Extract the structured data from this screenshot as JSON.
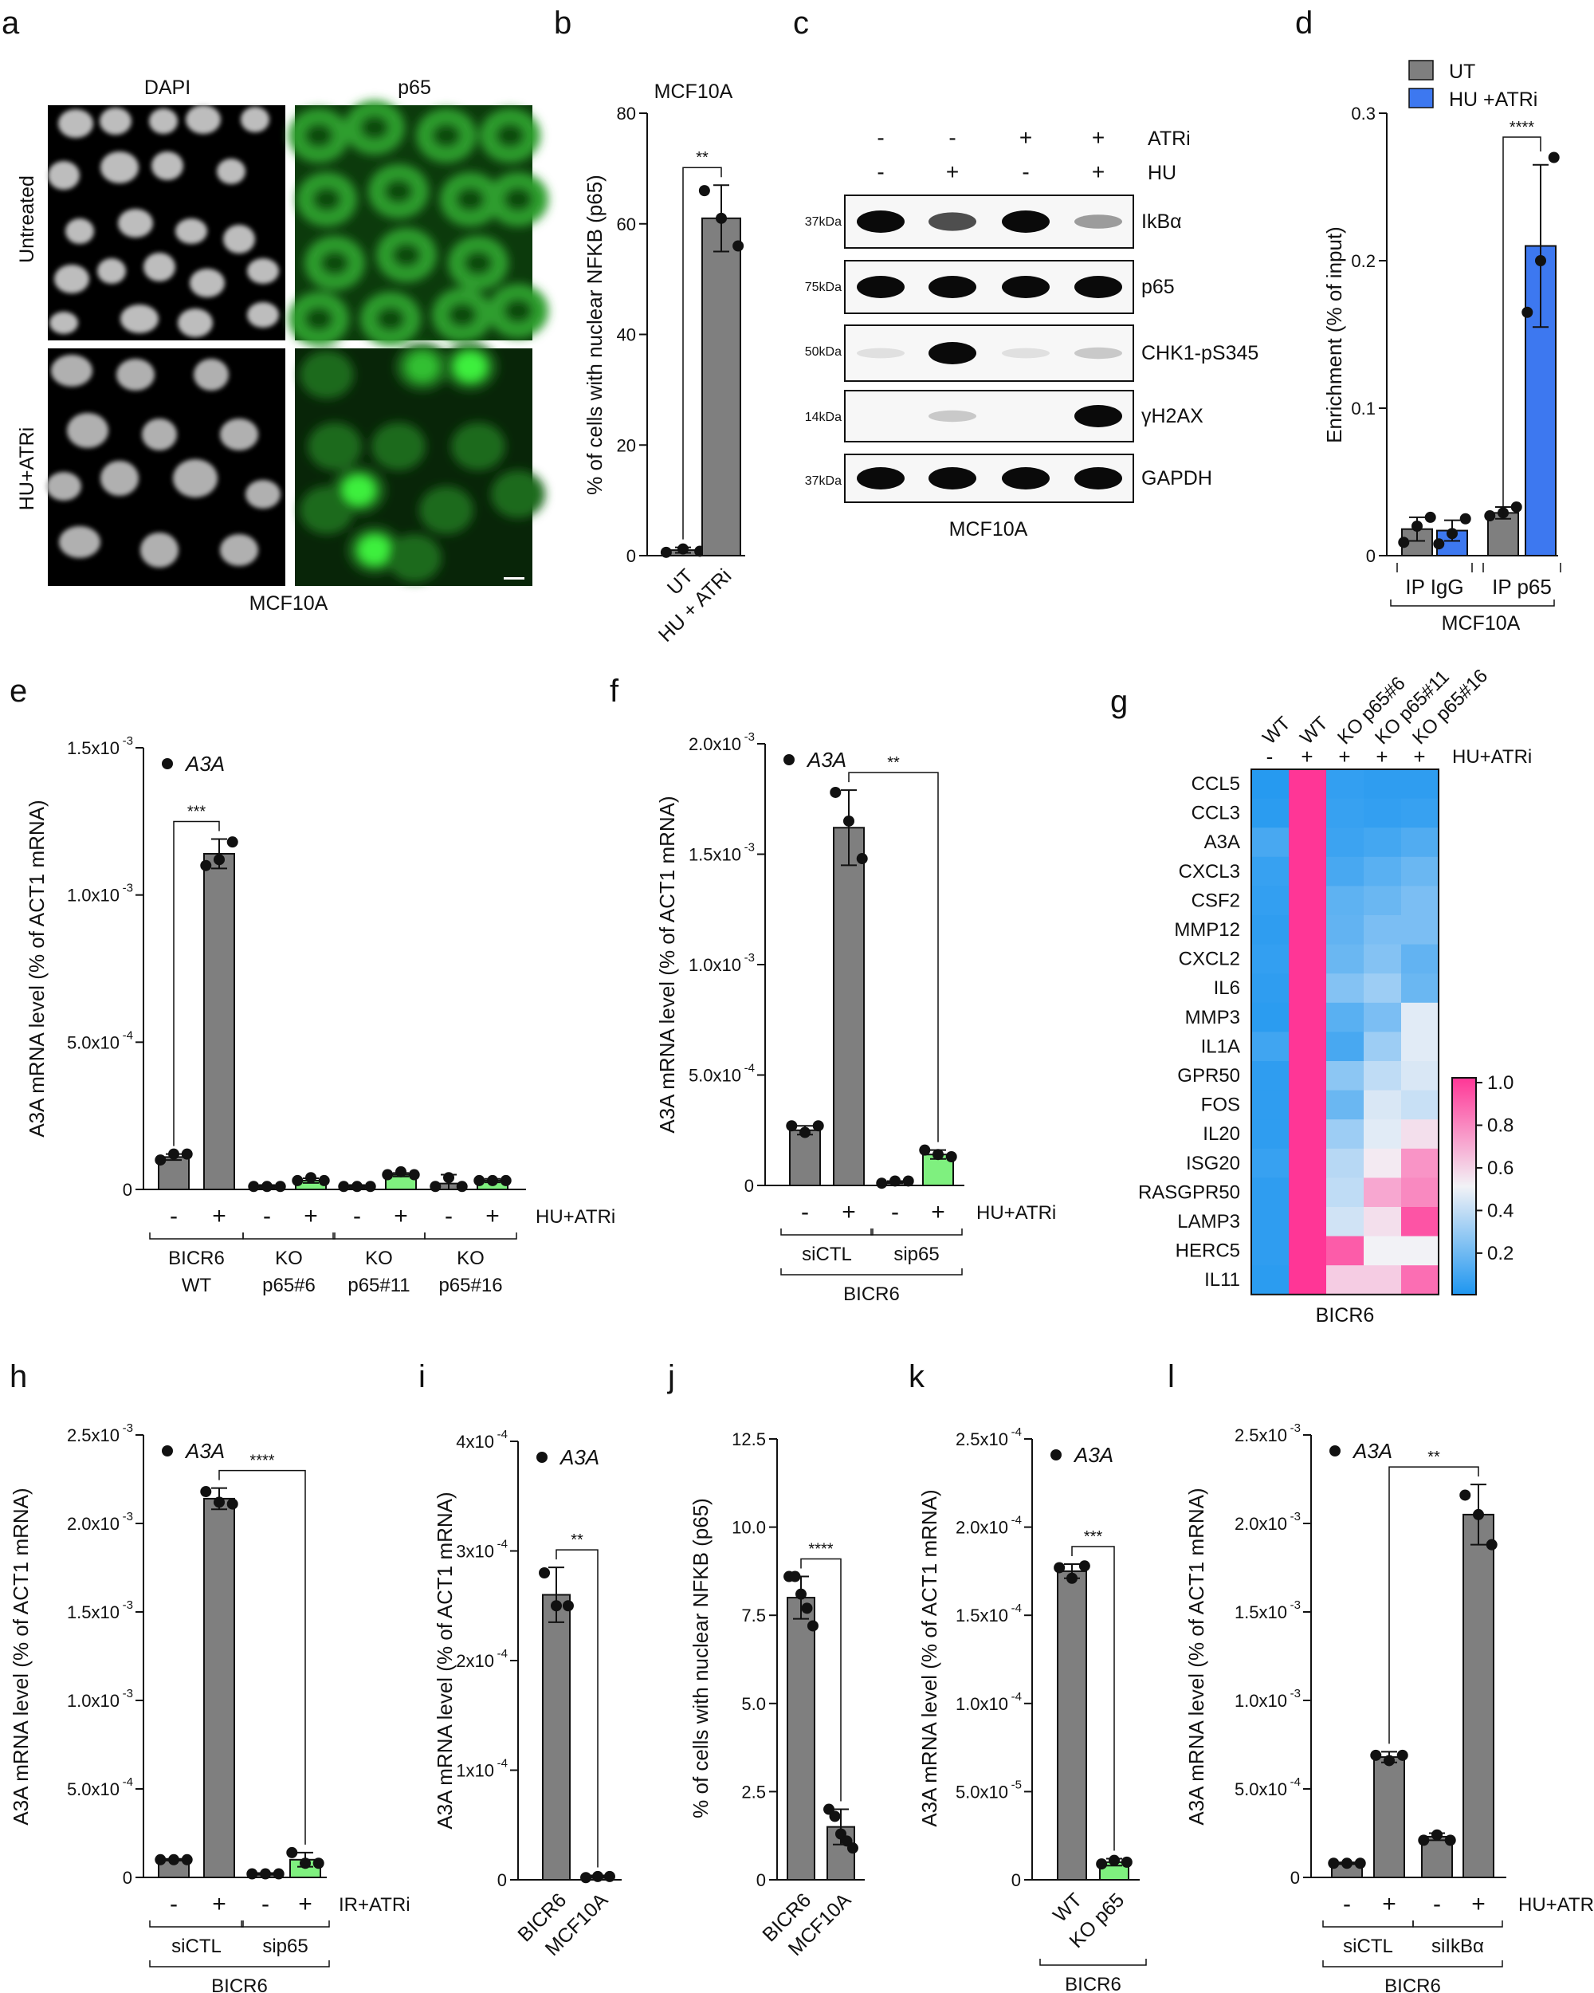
{
  "colors": {
    "gray": "#7f7f7f",
    "blue": "#3d78f0",
    "green": "#7ff07f",
    "axis": "#111111",
    "heat_low": "#1e96f0",
    "heat_mid": "#f2f2f6",
    "heat_high": "#ff3696"
  },
  "panel_a": {
    "letter": "a",
    "col_labels": [
      "DAPI",
      "p65"
    ],
    "row_labels": [
      "Untreated",
      "HU+ATRi"
    ],
    "caption": "MCF10A"
  },
  "panel_c": {
    "letter": "c",
    "treat_rows": [
      {
        "label": "ATRi",
        "signs": [
          "-",
          "-",
          "+",
          "+"
        ]
      },
      {
        "label": "HU",
        "signs": [
          "-",
          "+",
          "-",
          "+"
        ]
      }
    ],
    "blots": [
      {
        "name": "IkBα",
        "marker": "37kDa",
        "intensity": [
          1.0,
          0.7,
          1.0,
          0.35
        ]
      },
      {
        "name": "p65",
        "marker": "75kDa",
        "intensity": [
          1.0,
          1.0,
          1.0,
          1.0
        ]
      },
      {
        "name": "CHK1-pS345",
        "marker": "50kDa",
        "intensity": [
          0.05,
          1.0,
          0.05,
          0.15
        ]
      },
      {
        "name": "γH2AX",
        "marker": "14kDa",
        "intensity": [
          0.0,
          0.15,
          0.0,
          1.0
        ]
      },
      {
        "name": "GAPDH",
        "marker": "37kDa",
        "intensity": [
          1.0,
          1.0,
          1.0,
          1.0
        ]
      }
    ],
    "caption": "MCF10A"
  },
  "chart_data": [
    {
      "id": "b",
      "type": "bar",
      "letter": "b",
      "title": "MCF10A",
      "ylabel": "% of cells with nuclear NFKB (p65)",
      "ylim": [
        0,
        80
      ],
      "yticks": [
        "0",
        "20",
        "40",
        "60",
        "80"
      ],
      "ytick_values": [
        0,
        20,
        40,
        60,
        80
      ],
      "categories": [
        "UT",
        "HU + ATRi"
      ],
      "values": [
        1,
        61
      ],
      "errors": [
        0.5,
        6
      ],
      "colors": [
        "gray",
        "gray"
      ],
      "points": [
        [
          0.6,
          1.2,
          0.8
        ],
        [
          66,
          61,
          56
        ]
      ],
      "sig": [
        {
          "from": 0,
          "to": 1,
          "text": "**"
        }
      ],
      "xlabel_rotated": true
    },
    {
      "id": "d",
      "type": "bar",
      "letter": "d",
      "ylabel": "Enrichment (% of input)",
      "ylim": [
        0,
        0.3
      ],
      "yticks": [
        "0",
        "0.1",
        "0.2",
        "0.3"
      ],
      "ytick_values": [
        0,
        0.1,
        0.2,
        0.3
      ],
      "legend": [
        {
          "name": "UT",
          "color": "gray"
        },
        {
          "name": "HU +ATRi",
          "color": "blue"
        }
      ],
      "categories": [
        "IP IgG",
        "IP p65"
      ],
      "series": [
        {
          "name": "UT",
          "values": [
            0.018,
            0.029
          ],
          "errors": [
            0.008,
            0.004
          ],
          "points": [
            [
              0.009,
              0.02,
              0.026
            ],
            [
              0.027,
              0.029,
              0.033
            ]
          ]
        },
        {
          "name": "HU +ATRi",
          "values": [
            0.017,
            0.21
          ],
          "errors": [
            0.007,
            0.055
          ],
          "points": [
            [
              0.008,
              0.015,
              0.025
            ],
            [
              0.165,
              0.2,
              0.27
            ]
          ]
        }
      ],
      "sig": [
        {
          "text": "****"
        }
      ],
      "group_label": "MCF10A"
    },
    {
      "id": "e",
      "type": "bar",
      "letter": "e",
      "ylabel": "A3A mRNA level (% of ACT1 mRNA)",
      "legend_label": "A3A",
      "ylim": [
        0,
        0.0015
      ],
      "yticks": [
        "0",
        "5.0x10",
        "1.0x10",
        "1.5x10"
      ],
      "ytick_exps": [
        "",
        "-4",
        "-3",
        "-3"
      ],
      "ytick_values": [
        0,
        0.0005,
        0.001,
        0.0015
      ],
      "categories": [
        "-",
        "+",
        "-",
        "+",
        "-",
        "+",
        "-",
        "+"
      ],
      "values": [
        0.00011,
        0.00114,
        1e-05,
        3e-05,
        1e-05,
        5e-05,
        2e-05,
        3e-05
      ],
      "errors": [
        1e-05,
        5e-05,
        5e-06,
        8e-06,
        5e-06,
        6e-06,
        3e-05,
        6e-06
      ],
      "colors": [
        "gray",
        "gray",
        "gray",
        "green",
        "gray",
        "green",
        "gray",
        "green"
      ],
      "points": [
        [
          0.0001,
          0.00012,
          0.00012
        ],
        [
          0.0011,
          0.00112,
          0.00118
        ],
        [
          1e-05,
          1e-05,
          1e-05
        ],
        [
          3e-05,
          4e-05,
          3e-05
        ],
        [
          1e-05,
          1e-05,
          1e-05
        ],
        [
          5e-05,
          6e-05,
          5e-05
        ],
        [
          1e-05,
          4e-05,
          1e-05
        ],
        [
          3e-05,
          3e-05,
          3e-05
        ]
      ],
      "sig": [
        {
          "from": 0,
          "to": 1,
          "text": "***"
        }
      ],
      "treatment": "HU+ATRi",
      "groups": [
        {
          "label": [
            "BICR6",
            "WT"
          ],
          "bars": [
            0,
            1
          ]
        },
        {
          "label": [
            "KO",
            "p65#6"
          ],
          "bars": [
            2,
            3
          ]
        },
        {
          "label": [
            "KO",
            "p65#11"
          ],
          "bars": [
            4,
            5
          ]
        },
        {
          "label": [
            "KO",
            "p65#16"
          ],
          "bars": [
            6,
            7
          ]
        }
      ]
    },
    {
      "id": "f",
      "type": "bar",
      "letter": "f",
      "ylabel": "A3A mRNA level (% of ACT1 mRNA)",
      "legend_label": "A3A",
      "ylim": [
        0,
        0.002
      ],
      "yticks": [
        "0",
        "5.0x10",
        "1.0x10",
        "1.5x10",
        "2.0x10"
      ],
      "ytick_exps": [
        "",
        "-4",
        "-3",
        "-3",
        "-3"
      ],
      "ytick_values": [
        0,
        0.0005,
        0.001,
        0.0015,
        0.002
      ],
      "categories": [
        "-",
        "+",
        "-",
        "+"
      ],
      "values": [
        0.00025,
        0.00162,
        1.5e-05,
        0.00014
      ],
      "errors": [
        2e-05,
        0.00017,
        5e-06,
        2e-05
      ],
      "colors": [
        "gray",
        "gray",
        "gray",
        "green"
      ],
      "points": [
        [
          0.00027,
          0.00024,
          0.00027
        ],
        [
          0.00178,
          0.00165,
          0.00148
        ],
        [
          1e-05,
          2e-05,
          2e-05
        ],
        [
          0.00016,
          0.00014,
          0.00013
        ]
      ],
      "sig": [
        {
          "from": 1,
          "to": 3,
          "text": "**"
        }
      ],
      "treatment": "HU+ATRi",
      "groups": [
        {
          "label": [
            "siCTL"
          ],
          "bars": [
            0,
            1
          ]
        },
        {
          "label": [
            "sip65"
          ],
          "bars": [
            2,
            3
          ]
        }
      ],
      "group_label": "BICR6"
    },
    {
      "id": "g",
      "type": "heatmap",
      "letter": "g",
      "columns": [
        "WT",
        "WT",
        "KO p65#6",
        "KO p65#11",
        "KO p65#16"
      ],
      "col_signs": [
        "-",
        "+",
        "+",
        "+",
        "+"
      ],
      "treatment": "HU+ATRi",
      "rows": [
        "CCL5",
        "CCL3",
        "A3A",
        "CXCL3",
        "CSF2",
        "MMP12",
        "CXCL2",
        "IL6",
        "MMP3",
        "IL1A",
        "GPR50",
        "FOS",
        "IL20",
        "ISG20",
        "RASGPR50",
        "LAMP3",
        "HERC5",
        "IL11"
      ],
      "values": [
        [
          0.02,
          1.0,
          0.05,
          0.04,
          0.04
        ],
        [
          0.03,
          1.0,
          0.06,
          0.05,
          0.06
        ],
        [
          0.1,
          1.0,
          0.07,
          0.09,
          0.12
        ],
        [
          0.06,
          1.0,
          0.1,
          0.14,
          0.18
        ],
        [
          0.05,
          1.0,
          0.15,
          0.18,
          0.22
        ],
        [
          0.04,
          1.0,
          0.16,
          0.22,
          0.22
        ],
        [
          0.05,
          1.0,
          0.18,
          0.24,
          0.16
        ],
        [
          0.04,
          1.0,
          0.24,
          0.3,
          0.18
        ],
        [
          0.03,
          1.0,
          0.14,
          0.22,
          0.46
        ],
        [
          0.08,
          1.0,
          0.1,
          0.3,
          0.46
        ],
        [
          0.04,
          1.0,
          0.26,
          0.38,
          0.44
        ],
        [
          0.04,
          1.0,
          0.18,
          0.44,
          0.4
        ],
        [
          0.04,
          1.0,
          0.3,
          0.46,
          0.55
        ],
        [
          0.06,
          1.0,
          0.36,
          0.52,
          0.75
        ],
        [
          0.04,
          1.0,
          0.38,
          0.7,
          0.78
        ],
        [
          0.04,
          1.0,
          0.42,
          0.55,
          0.92
        ],
        [
          0.04,
          1.0,
          0.9,
          0.5,
          0.5
        ],
        [
          0.03,
          1.0,
          0.6,
          0.6,
          0.85
        ]
      ],
      "colorbar_ticks": [
        "0.2",
        "0.4",
        "0.6",
        "0.8",
        "1.0"
      ],
      "colorbar_values": [
        0.2,
        0.4,
        0.6,
        0.8,
        1.0
      ],
      "group_label": "BICR6"
    },
    {
      "id": "h",
      "type": "bar",
      "letter": "h",
      "ylabel": "A3A mRNA level (% of ACT1 mRNA)",
      "legend_label": "A3A",
      "ylim": [
        0,
        0.0025
      ],
      "yticks": [
        "0",
        "5.0x10",
        "1.0x10",
        "1.5x10",
        "2.0x10",
        "2.5x10"
      ],
      "ytick_exps": [
        "",
        "-4",
        "-3",
        "-3",
        "-3",
        "-3"
      ],
      "ytick_values": [
        0,
        0.0005,
        0.001,
        0.0015,
        0.002,
        0.0025
      ],
      "categories": [
        "-",
        "+",
        "-",
        "+"
      ],
      "values": [
        0.0001,
        0.00214,
        2e-05,
        0.0001
      ],
      "errors": [
        5e-06,
        6e-05,
        5e-06,
        4e-05
      ],
      "colors": [
        "gray",
        "gray",
        "gray",
        "green"
      ],
      "points": [
        [
          0.0001,
          0.0001,
          0.0001
        ],
        [
          0.00218,
          0.00212,
          0.00211
        ],
        [
          2e-05,
          2e-05,
          2e-05
        ],
        [
          0.00014,
          8e-05,
          8e-05
        ]
      ],
      "sig": [
        {
          "from": 1,
          "to": 3,
          "text": "****"
        }
      ],
      "treatment": "IR+ATRi",
      "groups": [
        {
          "label": [
            "siCTL"
          ],
          "bars": [
            0,
            1
          ]
        },
        {
          "label": [
            "sip65"
          ],
          "bars": [
            2,
            3
          ]
        }
      ],
      "group_label": "BICR6"
    },
    {
      "id": "i",
      "type": "bar",
      "letter": "i",
      "ylabel": "A3A mRNA level (% of ACT1 mRNA)",
      "legend_label": "A3A",
      "ylim": [
        0,
        0.0004
      ],
      "yticks": [
        "0",
        "1x10",
        "2x10",
        "3x10",
        "4x10"
      ],
      "ytick_exps": [
        "",
        "-4",
        "-4",
        "-4",
        "-4"
      ],
      "ytick_values": [
        0,
        0.0001,
        0.0002,
        0.0003,
        0.0004
      ],
      "categories": [
        "BICR6",
        "MCF10A"
      ],
      "values": [
        0.00026,
        3e-06
      ],
      "errors": [
        2.5e-05,
        1e-06
      ],
      "colors": [
        "gray",
        "gray"
      ],
      "points": [
        [
          0.00028,
          0.00025,
          0.00025
        ],
        [
          2e-06,
          3e-06,
          3e-06
        ]
      ],
      "sig": [
        {
          "from": 0,
          "to": 1,
          "text": "**"
        }
      ],
      "xlabel_rotated": true
    },
    {
      "id": "j",
      "type": "bar",
      "letter": "j",
      "ylabel": "% of cells with nuclear NFKB (p65)",
      "ylim": [
        0,
        12.5
      ],
      "yticks": [
        "0",
        "2.5",
        "5.0",
        "7.5",
        "10.0",
        "12.5"
      ],
      "ytick_values": [
        0,
        2.5,
        5,
        7.5,
        10,
        12.5
      ],
      "categories": [
        "BICR6",
        "MCF10A"
      ],
      "values": [
        8.0,
        1.5
      ],
      "errors": [
        0.6,
        0.5
      ],
      "colors": [
        "gray",
        "gray"
      ],
      "points": [
        [
          8.6,
          8.6,
          8.1,
          7.7,
          7.2
        ],
        [
          2.0,
          1.8,
          1.3,
          1.1,
          0.9
        ]
      ],
      "sig": [
        {
          "from": 0,
          "to": 1,
          "text": "****"
        }
      ],
      "xlabel_rotated": true
    },
    {
      "id": "k",
      "type": "bar",
      "letter": "k",
      "ylabel": "A3A mRNA level (% of ACT1 mRNA)",
      "legend_label": "A3A",
      "ylim": [
        0,
        0.00025
      ],
      "yticks": [
        "0",
        "5.0x10",
        "1.0x10",
        "1.5x10",
        "2.0x10",
        "2.5x10"
      ],
      "ytick_exps": [
        "",
        "-5",
        "-4",
        "-4",
        "-4",
        "-4"
      ],
      "ytick_values": [
        0,
        5e-05,
        0.0001,
        0.00015,
        0.0002,
        0.00025
      ],
      "categories": [
        "WT",
        "KO p65"
      ],
      "values": [
        0.000175,
        1e-05
      ],
      "errors": [
        4e-06,
        2e-06
      ],
      "colors": [
        "gray",
        "green"
      ],
      "points": [
        [
          0.000177,
          0.000171,
          0.000178
        ],
        [
          9e-06,
          1.1e-05,
          1e-05
        ]
      ],
      "sig": [
        {
          "from": 0,
          "to": 1,
          "text": "***"
        }
      ],
      "xlabel_rotated": true,
      "group_label": "BICR6"
    },
    {
      "id": "l",
      "type": "bar",
      "letter": "l",
      "ylabel": "A3A mRNA level (% of ACT1 mRNA)",
      "legend_label": "A3A",
      "ylim": [
        0,
        0.0025
      ],
      "yticks": [
        "0",
        "5.0x10",
        "1.0x10",
        "1.5x10",
        "2.0x10",
        "2.5x10"
      ],
      "ytick_exps": [
        "",
        "-4",
        "-3",
        "-3",
        "-3",
        "-3"
      ],
      "ytick_values": [
        0,
        0.0005,
        0.001,
        0.0015,
        0.002,
        0.0025
      ],
      "categories": [
        "-",
        "+",
        "-",
        "+"
      ],
      "values": [
        8e-05,
        0.00068,
        0.00023,
        0.00205
      ],
      "errors": [
        5e-06,
        3e-05,
        2e-05,
        0.00017
      ],
      "colors": [
        "gray",
        "gray",
        "gray",
        "gray"
      ],
      "points": [
        [
          8e-05,
          8e-05,
          8e-05
        ],
        [
          0.00069,
          0.00066,
          0.00069
        ],
        [
          0.00021,
          0.00024,
          0.00021
        ],
        [
          0.00216,
          0.00205,
          0.00188
        ]
      ],
      "sig": [
        {
          "from": 1,
          "to": 3,
          "text": "**"
        }
      ],
      "treatment": "HU+ATRi",
      "groups": [
        {
          "label": [
            "siCTL"
          ],
          "bars": [
            0,
            1
          ]
        },
        {
          "label": [
            "siIkBα"
          ],
          "bars": [
            2,
            3
          ]
        }
      ],
      "group_label": "BICR6"
    }
  ]
}
